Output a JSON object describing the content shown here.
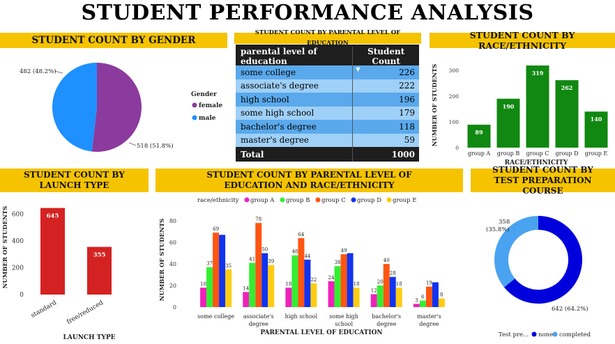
{
  "title": "STUDENT PERFORMANCE ANALYSIS",
  "panels": {
    "gender": "STUDENT COUNT BY GENDER",
    "parental_table": "STUDENT COUNT BY PARENTAL LEVEL OF EDUCATION",
    "race": "STUDENT COUNT BY RACE/ETHNICITY",
    "lunch": "STUDENT COUNT BY LAUNCH TYPE",
    "parental_race": "STUDENT COUNT BY PARENTAL LEVEL OF EDUCATION AND RACE/ETHNICITY",
    "test_prep": "STUDENT COUNT BY TEST PREPARATION COURSE"
  },
  "colors": {
    "banner": "#f5c300",
    "female": "#8b3a9e",
    "male": "#1e90ff",
    "race_bar": "#118811",
    "lunch_bar": "#d42222",
    "none": "#0000dd",
    "completed": "#4aa3f0"
  },
  "chart_data": [
    {
      "id": "gender",
      "type": "pie",
      "legend_title": "Gender",
      "legend_position": "right",
      "slices": [
        {
          "label": "female",
          "value": 518,
          "text": "518 (51.8%)",
          "color": "#8b3a9e"
        },
        {
          "label": "male",
          "value": 482,
          "text": "482 (48.2%)",
          "color": "#1e90ff"
        }
      ]
    },
    {
      "id": "parental_table",
      "type": "table",
      "columns": [
        "parental level of education",
        "Student Count"
      ],
      "rows": [
        [
          "some college",
          "226"
        ],
        [
          "associate's degree",
          "222"
        ],
        [
          "high school",
          "196"
        ],
        [
          "some high school",
          "179"
        ],
        [
          "bachelor's degree",
          "118"
        ],
        [
          "master's degree",
          "59"
        ]
      ],
      "total": [
        "Total",
        "1000"
      ]
    },
    {
      "id": "race",
      "type": "bar",
      "categories": [
        "group A",
        "group B",
        "group C",
        "group D",
        "group E"
      ],
      "values": [
        89,
        190,
        319,
        262,
        140
      ],
      "xlabel": "RACE/ETHNICITY",
      "ylabel": "NUMBER OF STUDENTS",
      "ylim": [
        0,
        330
      ],
      "yticks": [
        0,
        100,
        200,
        300
      ],
      "grid": false
    },
    {
      "id": "lunch",
      "type": "bar",
      "categories": [
        "standard",
        "free/reduced"
      ],
      "values": [
        645,
        355
      ],
      "xlabel": "LAUNCH TYPE",
      "ylabel": "NUMBER OF STUDENTS",
      "ylim": [
        0,
        690
      ],
      "yticks": [
        0,
        200,
        400,
        600
      ],
      "grid": false
    },
    {
      "id": "parental_race",
      "type": "bar",
      "legend_title": "race/ethnicity",
      "legend_position": "top",
      "categories": [
        "some college",
        "associate's degree",
        "high school",
        "some high school",
        "bachelor's degree",
        "master's degree"
      ],
      "series": [
        {
          "name": "group A",
          "color": "#ee22bb",
          "values": [
            18,
            14,
            18,
            24,
            12,
            3
          ]
        },
        {
          "name": "group B",
          "color": "#33ee33",
          "values": [
            37,
            41,
            48,
            38,
            20,
            6
          ]
        },
        {
          "name": "group C",
          "color": "#ff5511",
          "values": [
            69,
            78,
            64,
            49,
            40,
            19
          ]
        },
        {
          "name": "group D",
          "color": "#1133ee",
          "values": [
            67,
            50,
            44,
            50,
            28,
            23
          ]
        },
        {
          "name": "group E",
          "color": "#ffcc11",
          "values": [
            35,
            39,
            22,
            18,
            18,
            8
          ]
        }
      ],
      "labels": [
        [
          18,
          37,
          69,
          null,
          35
        ],
        [
          14,
          41,
          78,
          50,
          39
        ],
        [
          18,
          48,
          64,
          44,
          22
        ],
        [
          24,
          38,
          49,
          null,
          18
        ],
        [
          12,
          20,
          40,
          28,
          18
        ],
        [
          3,
          6,
          19,
          null,
          8
        ]
      ],
      "xlabel": "PARENTAL LEVEL OF EDUCATION",
      "ylabel": "NUMBER OF STUDENTS",
      "ylim": [
        0,
        82
      ],
      "yticks": [
        0,
        20,
        40,
        60,
        80
      ],
      "grid": false
    },
    {
      "id": "test_prep",
      "type": "pie",
      "donut": true,
      "legend_title": "Test pre...",
      "legend_position": "bottom",
      "slices": [
        {
          "label": "none",
          "value": 642,
          "text": "642 (64.2%)",
          "color": "#0000dd"
        },
        {
          "label": "completed",
          "value": 358,
          "text": "358 (35.8%)",
          "color": "#4aa3f0"
        }
      ]
    }
  ]
}
